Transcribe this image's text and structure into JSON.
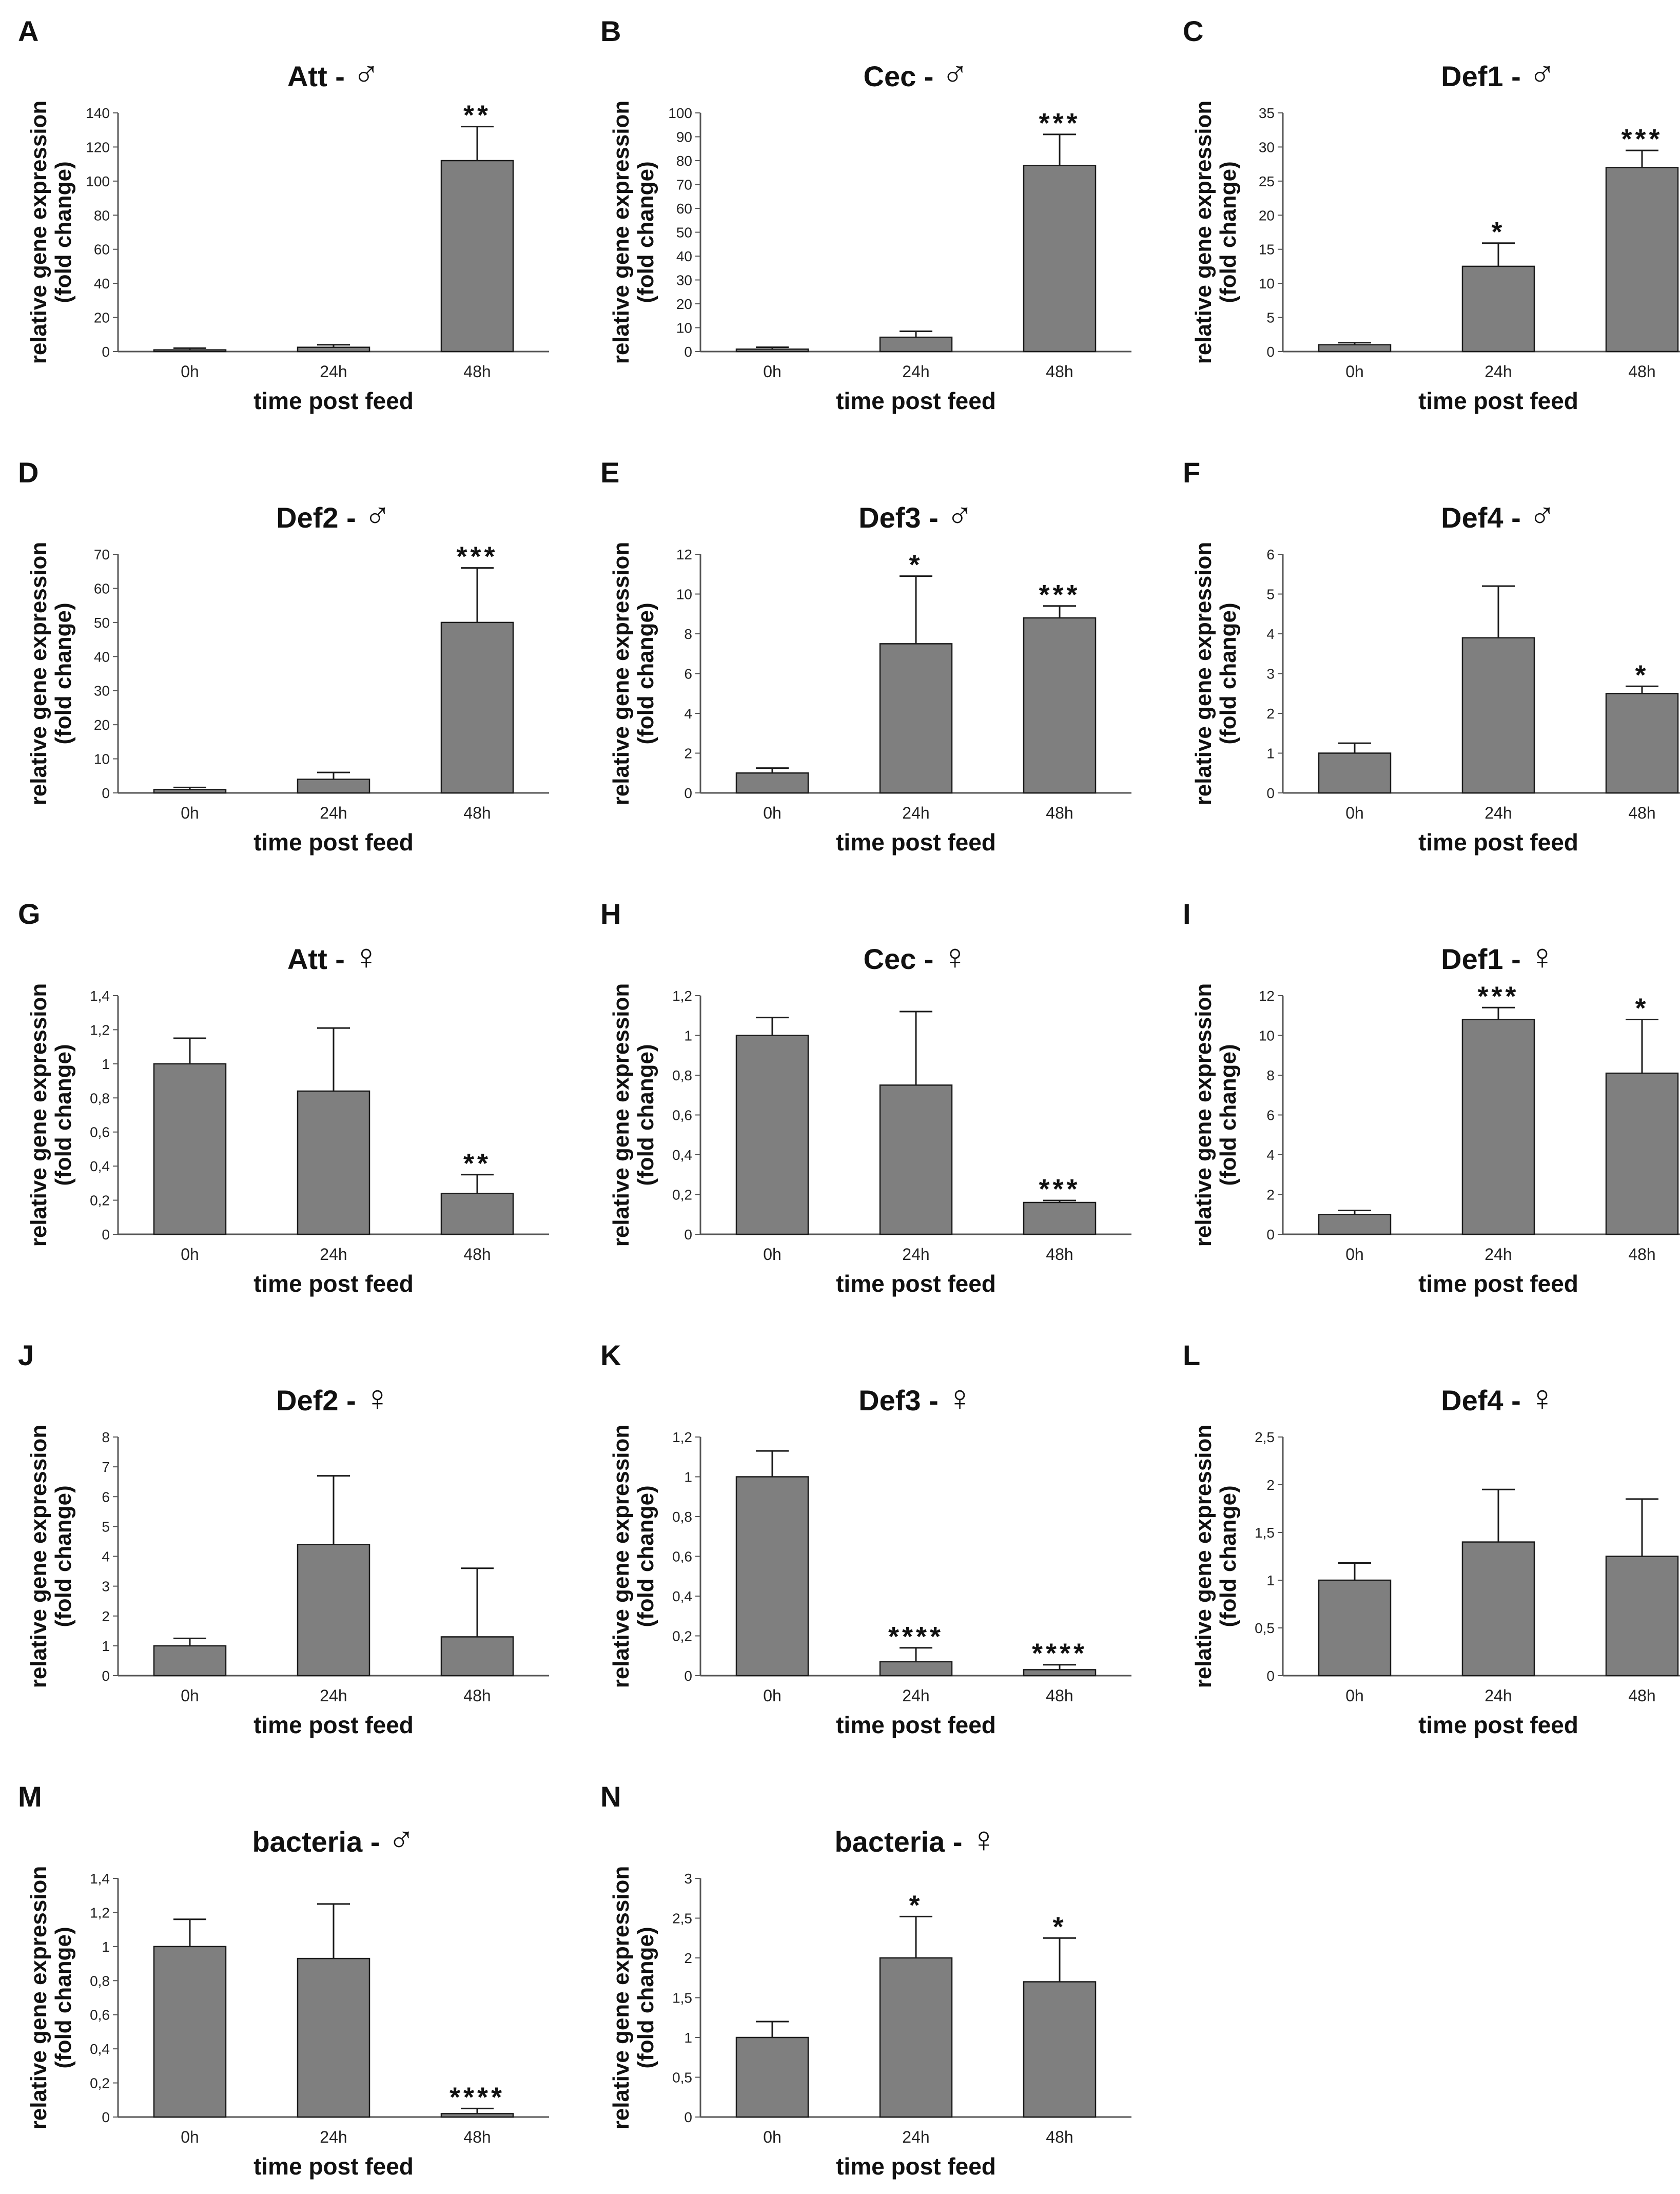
{
  "figure": {
    "bar_color": "#7f7f7f",
    "bar_edge_color": "#1a1a1a",
    "axis_color": "#555555",
    "male_symbol": "♂",
    "female_symbol": "♀"
  },
  "chart_data": [
    {
      "panel": "A",
      "type": "bar",
      "title": "Att",
      "title_sep": " - ",
      "sex": "male",
      "ylabel": [
        "relative gene expression",
        "(fold change)"
      ],
      "xlabel": "time post feed",
      "categories": [
        "0h",
        "24h",
        "48h"
      ],
      "values": [
        1,
        2.5,
        112
      ],
      "errors": [
        1,
        1.5,
        20
      ],
      "significance": [
        "",
        "",
        "**"
      ],
      "ylim": [
        0,
        140
      ],
      "yticks": [
        "0",
        "20",
        "40",
        "60",
        "80",
        "100",
        "120",
        "140"
      ]
    },
    {
      "panel": "B",
      "type": "bar",
      "title": "Cec",
      "title_sep": " - ",
      "sex": "male",
      "ylabel": [
        "relative gene expression",
        "(fold change)"
      ],
      "xlabel": "time post feed",
      "categories": [
        "0h",
        "24h",
        "48h"
      ],
      "values": [
        1,
        6,
        78
      ],
      "errors": [
        0.8,
        2.5,
        13
      ],
      "significance": [
        "",
        "",
        "***"
      ],
      "ylim": [
        0,
        100
      ],
      "yticks": [
        "0",
        "10",
        "20",
        "30",
        "40",
        "50",
        "60",
        "70",
        "80",
        "90",
        "100"
      ]
    },
    {
      "panel": "C",
      "type": "bar",
      "title": "Def1",
      "title_sep": " - ",
      "sex": "male",
      "ylabel": [
        "relative gene expression",
        "(fold change)"
      ],
      "xlabel": "time post feed",
      "categories": [
        "0h",
        "24h",
        "48h"
      ],
      "values": [
        1,
        12.5,
        27
      ],
      "errors": [
        0.3,
        3.4,
        2.5
      ],
      "significance": [
        "",
        "*",
        "***"
      ],
      "ylim": [
        0,
        35
      ],
      "yticks": [
        "0",
        "5",
        "10",
        "15",
        "20",
        "25",
        "30",
        "35"
      ]
    },
    {
      "panel": "D",
      "type": "bar",
      "title": "Def2",
      "title_sep": " - ",
      "sex": "male",
      "ylabel": [
        "relative gene expression",
        "(fold change)"
      ],
      "xlabel": "time post feed",
      "categories": [
        "0h",
        "24h",
        "48h"
      ],
      "values": [
        1,
        4,
        50
      ],
      "errors": [
        0.6,
        2,
        16
      ],
      "significance": [
        "",
        "",
        "***"
      ],
      "ylim": [
        0,
        70
      ],
      "yticks": [
        "0",
        "10",
        "20",
        "30",
        "40",
        "50",
        "60",
        "70"
      ]
    },
    {
      "panel": "E",
      "type": "bar",
      "title": "Def3",
      "title_sep": " - ",
      "sex": "male",
      "ylabel": [
        "relative gene expression",
        "(fold change)"
      ],
      "xlabel": "time post feed",
      "categories": [
        "0h",
        "24h",
        "48h"
      ],
      "values": [
        1,
        7.5,
        8.8
      ],
      "errors": [
        0.25,
        3.4,
        0.6
      ],
      "significance": [
        "",
        "*",
        "***"
      ],
      "ylim": [
        0,
        12
      ],
      "yticks": [
        "0",
        "2",
        "4",
        "6",
        "8",
        "10",
        "12"
      ]
    },
    {
      "panel": "F",
      "type": "bar",
      "title": "Def4",
      "title_sep": " - ",
      "sex": "male",
      "ylabel": [
        "relative gene expression",
        "(fold change)"
      ],
      "xlabel": "time post feed",
      "categories": [
        "0h",
        "24h",
        "48h"
      ],
      "values": [
        1,
        3.9,
        2.5
      ],
      "errors": [
        0.25,
        1.3,
        0.18
      ],
      "significance": [
        "",
        "",
        "*"
      ],
      "ylim": [
        0,
        6
      ],
      "yticks": [
        "0",
        "1",
        "2",
        "3",
        "4",
        "5",
        "6"
      ]
    },
    {
      "panel": "G",
      "type": "bar",
      "title": "Att",
      "title_sep": " - ",
      "sex": "female",
      "ylabel": [
        "relative gene expression",
        "(fold change)"
      ],
      "xlabel": "time post feed",
      "categories": [
        "0h",
        "24h",
        "48h"
      ],
      "values": [
        1,
        0.84,
        0.24
      ],
      "errors": [
        0.15,
        0.37,
        0.11
      ],
      "significance": [
        "",
        "",
        "**"
      ],
      "ylim": [
        0,
        1.4
      ],
      "yticks": [
        "0",
        "0,2",
        "0,4",
        "0,6",
        "0,8",
        "1",
        "1,2",
        "1,4"
      ]
    },
    {
      "panel": "H",
      "type": "bar",
      "title": "Cec",
      "title_sep": " - ",
      "sex": "female",
      "ylabel": [
        "relative gene expression",
        "(fold change)"
      ],
      "xlabel": "time post feed",
      "categories": [
        "0h",
        "24h",
        "48h"
      ],
      "values": [
        1,
        0.75,
        0.16
      ],
      "errors": [
        0.09,
        0.37,
        0.01
      ],
      "significance": [
        "",
        "",
        "***"
      ],
      "ylim": [
        0,
        1.2
      ],
      "yticks": [
        "0",
        "0,2",
        "0,4",
        "0,6",
        "0,8",
        "1",
        "1,2"
      ]
    },
    {
      "panel": "I",
      "type": "bar",
      "title": "Def1",
      "title_sep": " - ",
      "sex": "female",
      "ylabel": [
        "relative gene expression",
        "(fold change)"
      ],
      "xlabel": "time post feed",
      "categories": [
        "0h",
        "24h",
        "48h"
      ],
      "values": [
        1,
        10.8,
        8.1
      ],
      "errors": [
        0.2,
        0.6,
        2.7
      ],
      "significance": [
        "",
        "***",
        "*"
      ],
      "ylim": [
        0,
        12
      ],
      "yticks": [
        "0",
        "2",
        "4",
        "6",
        "8",
        "10",
        "12"
      ]
    },
    {
      "panel": "J",
      "type": "bar",
      "title": "Def2",
      "title_sep": " - ",
      "sex": "female",
      "ylabel": [
        "relative gene expression",
        "(fold change)"
      ],
      "xlabel": "time post feed",
      "categories": [
        "0h",
        "24h",
        "48h"
      ],
      "values": [
        1,
        4.4,
        1.3
      ],
      "errors": [
        0.25,
        2.3,
        2.3
      ],
      "significance": [
        "",
        "",
        ""
      ],
      "ylim": [
        0,
        8
      ],
      "yticks": [
        "0",
        "1",
        "2",
        "3",
        "4",
        "5",
        "6",
        "7",
        "8"
      ]
    },
    {
      "panel": "K",
      "type": "bar",
      "title": "Def3",
      "title_sep": " - ",
      "sex": "female",
      "ylabel": [
        "relative gene expression",
        "(fold change)"
      ],
      "xlabel": "time post feed",
      "categories": [
        "0h",
        "24h",
        "48h"
      ],
      "values": [
        1,
        0.07,
        0.03
      ],
      "errors": [
        0.13,
        0.07,
        0.025
      ],
      "significance": [
        "",
        "****",
        "****"
      ],
      "ylim": [
        0,
        1.2
      ],
      "yticks": [
        "0",
        "0,2",
        "0,4",
        "0,6",
        "0,8",
        "1",
        "1,2"
      ]
    },
    {
      "panel": "L",
      "type": "bar",
      "title": "Def4",
      "title_sep": " - ",
      "sex": "female",
      "ylabel": [
        "relative gene expression",
        "(fold change)"
      ],
      "xlabel": "time post feed",
      "categories": [
        "0h",
        "24h",
        "48h"
      ],
      "values": [
        1,
        1.4,
        1.25
      ],
      "errors": [
        0.18,
        0.55,
        0.6
      ],
      "significance": [
        "",
        "",
        ""
      ],
      "ylim": [
        0,
        2.5
      ],
      "yticks": [
        "0",
        "0,5",
        "1",
        "1,5",
        "2",
        "2,5"
      ]
    },
    {
      "panel": "M",
      "type": "bar",
      "title": "bacteria",
      "title_sep": " - ",
      "sex": "male",
      "ylabel": [
        "relative gene expression",
        "(fold change)"
      ],
      "xlabel": "time post feed",
      "categories": [
        "0h",
        "24h",
        "48h"
      ],
      "values": [
        1,
        0.93,
        0.02
      ],
      "errors": [
        0.16,
        0.32,
        0.03
      ],
      "significance": [
        "",
        "",
        "****"
      ],
      "ylim": [
        0,
        1.4
      ],
      "yticks": [
        "0",
        "0,2",
        "0,4",
        "0,6",
        "0,8",
        "1",
        "1,2",
        "1,4"
      ]
    },
    {
      "panel": "N",
      "type": "bar",
      "title": "bacteria",
      "title_sep": " - ",
      "sex": "female",
      "ylabel": [
        "relative gene expression",
        "(fold change)"
      ],
      "xlabel": "time post feed",
      "categories": [
        "0h",
        "24h",
        "48h"
      ],
      "values": [
        1,
        2,
        1.7
      ],
      "errors": [
        0.2,
        0.52,
        0.55
      ],
      "significance": [
        "",
        "*",
        "*"
      ],
      "ylim": [
        0,
        3
      ],
      "yticks": [
        "0",
        "0,5",
        "1",
        "1,5",
        "2",
        "2,5",
        "3"
      ]
    }
  ]
}
